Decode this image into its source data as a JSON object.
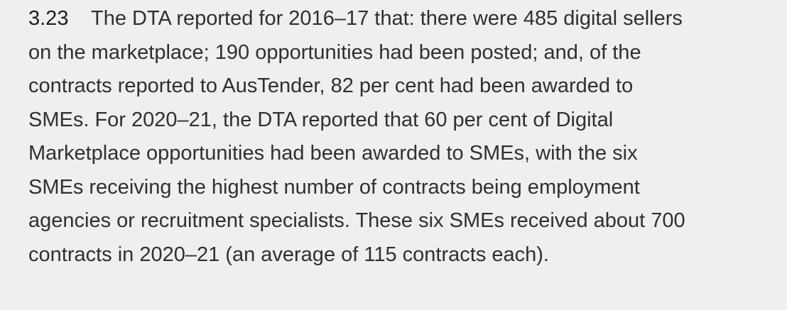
{
  "paragraph": {
    "number": "3.23",
    "lines": [
      "The DTA reported for 2016–17 that: there were 485 digital sellers",
      "on the marketplace; 190 opportunities had been posted; and, of the",
      "contracts reported to AusTender, 82 per cent had been awarded to",
      "SMEs. For 2020–21, the DTA reported that 60 per cent of Digital",
      "Marketplace opportunities had been awarded to SMEs, with the six",
      "SMEs receiving the highest number of contracts being employment",
      "agencies or recruitment specialists. These six SMEs received about 700",
      "contracts in 2020–21 (an average of 115 contracts each)."
    ]
  }
}
